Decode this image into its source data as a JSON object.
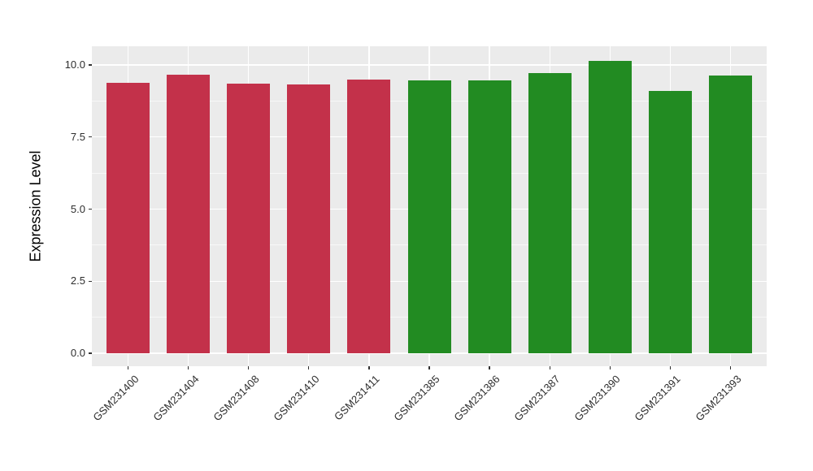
{
  "chart_data": {
    "type": "bar",
    "title": "",
    "xlabel": "",
    "ylabel": "Expression Level",
    "categories": [
      "GSM231400",
      "GSM231404",
      "GSM231408",
      "GSM231410",
      "GSM231411",
      "GSM231385",
      "GSM231386",
      "GSM231387",
      "GSM231390",
      "GSM231391",
      "GSM231393"
    ],
    "values": [
      9.39,
      9.67,
      9.36,
      9.32,
      9.48,
      9.46,
      9.46,
      9.72,
      10.15,
      9.09,
      9.62
    ],
    "bar_colors": [
      "#C3314A",
      "#C3314A",
      "#C3314A",
      "#C3314A",
      "#C3314A",
      "#228B22",
      "#228B22",
      "#228B22",
      "#228B22",
      "#228B22",
      "#228B22"
    ],
    "group_colors": {
      "crimson_group": "#C3314A",
      "green_group": "#228B22"
    },
    "yticks": [
      0.0,
      2.5,
      5.0,
      7.5,
      10.0
    ],
    "ytick_labels": [
      "0.0",
      "2.5",
      "5.0",
      "7.5",
      "10.0"
    ],
    "y_minor_ticks": [
      1.25,
      3.75,
      6.25,
      8.75
    ],
    "ylim": [
      -0.5,
      10.65
    ],
    "grid": true,
    "legend": "none",
    "panel_bg": "#EBEBEB",
    "grid_color": "#FFFFFF",
    "tick_color": "#333333",
    "text_color": "#2e2e2e"
  }
}
